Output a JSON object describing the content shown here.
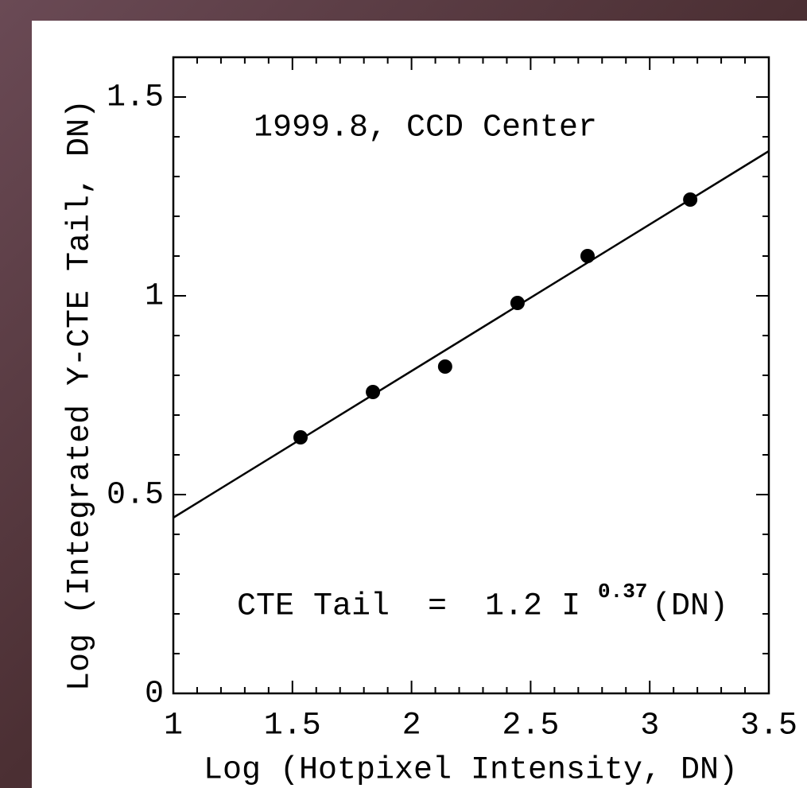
{
  "chart_data": {
    "type": "scatter",
    "xlabel": "Log (Hotpixel Intensity, DN)",
    "ylabel": "Log (Integrated Y-CTE Tail, DN)",
    "annotations": [
      "1999.8, CCD Center",
      "CTE Tail  =  1.2 I",
      "0.37",
      "(DN)"
    ],
    "x": [
      1.534,
      1.838,
      2.141,
      2.445,
      2.739,
      3.17
    ],
    "values": [
      0.644,
      0.758,
      0.822,
      0.982,
      1.1,
      1.242
    ],
    "color": "#000000",
    "fit_line": {
      "x": [
        1,
        3.5
      ],
      "values": [
        0.442,
        1.364
      ]
    },
    "xlim": [
      1,
      3.5
    ],
    "ylim": [
      0,
      1.6
    ],
    "xticks": [
      1,
      1.5,
      2,
      2.5,
      3,
      3.5
    ],
    "yticks": [
      0,
      0.5,
      1,
      1.5
    ],
    "xminorticks": [
      1.1,
      1.2,
      1.3,
      1.4,
      1.6,
      1.7,
      1.8,
      1.9,
      2.1,
      2.2,
      2.3,
      2.4,
      2.6,
      2.7,
      2.8,
      2.9,
      3.1,
      3.2,
      3.3,
      3.4
    ],
    "yminorticks": [
      0.1,
      0.2,
      0.3,
      0.4,
      0.6,
      0.7,
      0.8,
      0.9,
      1.1,
      1.2,
      1.3,
      1.4
    ]
  }
}
